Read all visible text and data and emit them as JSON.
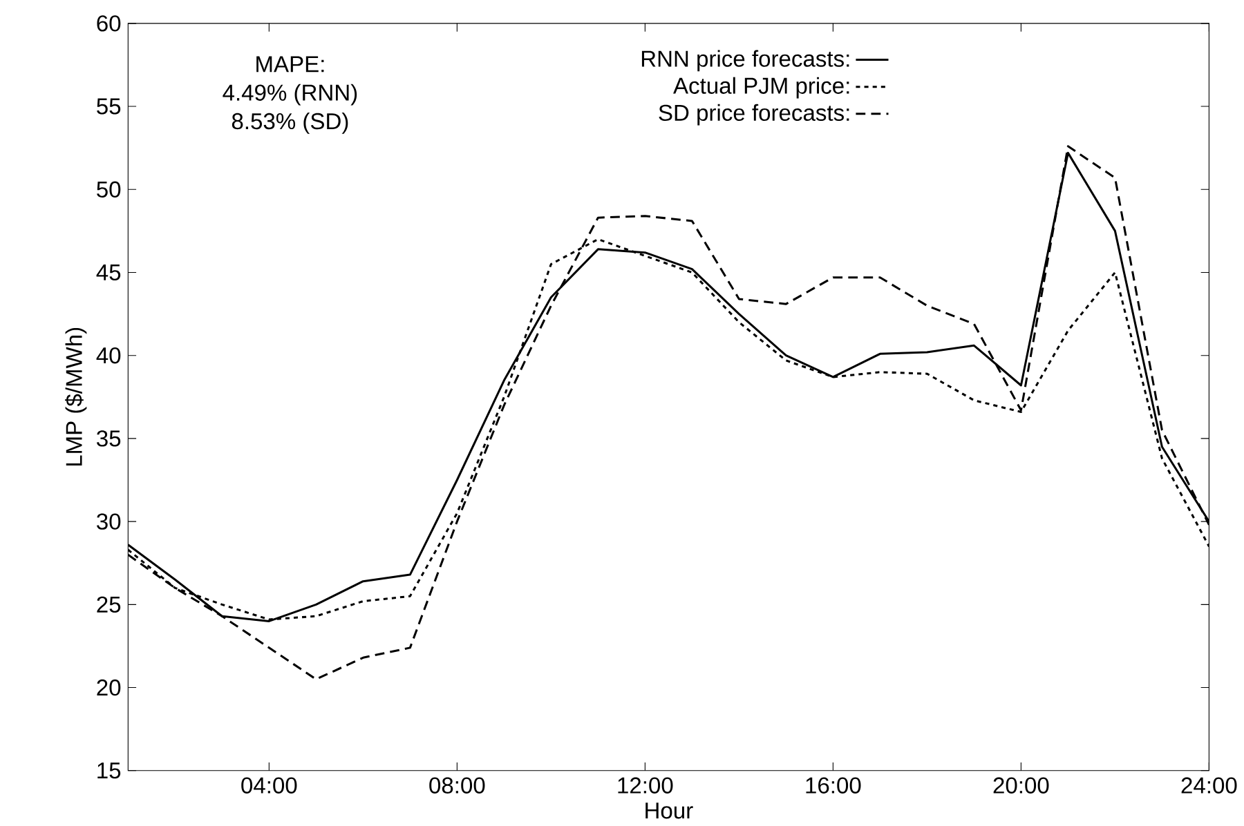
{
  "chart_data": {
    "type": "line",
    "xlabel": "Hour",
    "ylabel": "LMP ($/MWh)",
    "annotations": [
      "MAPE:",
      "4.49% (RNN)",
      "8.53% (SD)"
    ],
    "x": [
      1,
      2,
      3,
      4,
      5,
      6,
      7,
      8,
      9,
      10,
      11,
      12,
      13,
      14,
      15,
      16,
      17,
      18,
      19,
      20,
      21,
      22,
      23,
      24
    ],
    "series": [
      {
        "name": "RNN price forecasts:",
        "color": "#000000",
        "line_style": "solid",
        "values": [
          28.6,
          26.5,
          24.3,
          24.0,
          25.0,
          26.4,
          26.8,
          32.5,
          38.5,
          43.5,
          46.4,
          46.2,
          45.2,
          42.5,
          40.0,
          38.7,
          40.1,
          40.2,
          40.6,
          38.2,
          52.2,
          47.5,
          34.5,
          30.0
        ]
      },
      {
        "name": "Actual PJM price:",
        "color": "#000000",
        "line_style": "dotted",
        "values": [
          28.3,
          26.0,
          25.0,
          24.1,
          24.3,
          25.2,
          25.5,
          30.5,
          37.5,
          45.5,
          47.0,
          46.0,
          45.0,
          42.0,
          39.7,
          38.7,
          39.0,
          38.9,
          37.3,
          36.6,
          41.5,
          45.0,
          33.8,
          28.5
        ]
      },
      {
        "name": "SD price forecasts:",
        "color": "#000000",
        "line_style": "dashed",
        "values": [
          28.0,
          26.0,
          24.3,
          22.4,
          20.5,
          21.8,
          22.4,
          30.0,
          37.0,
          43.0,
          48.3,
          48.4,
          48.1,
          43.4,
          43.1,
          44.7,
          44.7,
          43.0,
          41.9,
          36.7,
          52.6,
          50.7,
          35.5,
          29.8
        ]
      }
    ],
    "xlim": [
      1,
      24
    ],
    "xticks": [
      {
        "value": 4,
        "label": "04:00"
      },
      {
        "value": 8,
        "label": "08:00"
      },
      {
        "value": 12,
        "label": "12:00"
      },
      {
        "value": 16,
        "label": "16:00"
      },
      {
        "value": 20,
        "label": "20:00"
      },
      {
        "value": 24,
        "label": "24:00"
      }
    ],
    "ylim": [
      15,
      60
    ],
    "yticks": [
      15,
      20,
      25,
      30,
      35,
      40,
      45,
      50,
      55,
      60
    ],
    "grid": false,
    "legend": "top",
    "marker": "none"
  }
}
